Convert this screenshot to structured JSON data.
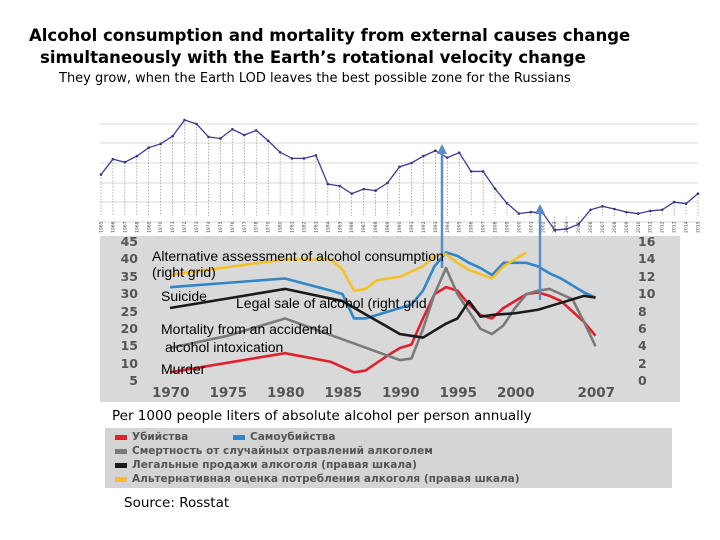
{
  "header": {
    "title_line1": "Alcohol consumption and mortality from external causes change",
    "title_line2": "simultaneously with the Earth’s rotational velocity change",
    "subtitle": "They grow, when the Earth LOD leaves the best possible zone for the Russians"
  },
  "lod_chart": {
    "type": "line",
    "years": [
      "1965",
      "1966",
      "1967",
      "1968",
      "1969",
      "1970",
      "1971",
      "1972",
      "1973",
      "1974",
      "1975",
      "1976",
      "1977",
      "1978",
      "1979",
      "1980",
      "1981",
      "1982",
      "1983",
      "1984",
      "1985",
      "1986",
      "1987",
      "1988",
      "1989",
      "1990",
      "1991",
      "1992",
      "1993",
      "1994",
      "1995",
      "1996",
      "1997",
      "1998",
      "1999",
      "2000",
      "2001",
      "2002",
      "2003",
      "2004",
      "2005",
      "2006",
      "2007",
      "2008",
      "2009",
      "2010",
      "2011",
      "2012",
      "2013",
      "2014",
      "2015"
    ],
    "values": [
      15,
      19,
      18.2,
      19.8,
      22,
      23,
      25,
      29.2,
      28.2,
      24.8,
      24.4,
      26.8,
      25.3,
      26.5,
      23.8,
      20.8,
      19.2,
      19.2,
      20,
      12.5,
      12,
      10,
      11.2,
      10.8,
      12.8,
      17,
      18,
      19.8,
      21.2,
      19.4,
      20.7,
      15.8,
      15.8,
      11.3,
      7.5,
      4.8,
      5.2,
      5,
      0.5,
      0.8,
      2,
      5.8,
      6.7,
      6,
      5.2,
      4.8,
      5.5,
      5.8,
      7.8,
      7.4,
      10
    ],
    "line_color": "#3b3b9a"
  },
  "chart_data": {
    "type": "line",
    "x_ticks": [
      "1970",
      "1975",
      "1980",
      "1985",
      "1990",
      "1995",
      "2000",
      "2007"
    ],
    "y_left_ticks": [
      "45",
      "40",
      "35",
      "30",
      "25",
      "20",
      "15",
      "10",
      "5"
    ],
    "y_right_ticks": [
      "16",
      "14",
      "12",
      "10",
      "8",
      "6",
      "4",
      "2",
      "0"
    ],
    "ylim_left": [
      5,
      45
    ],
    "ylim_right": [
      0,
      16
    ],
    "xlim": [
      1970,
      2007
    ],
    "grid": false,
    "xlabel": "Per 1000 people liters of absolute alcohol per person annually",
    "series": [
      {
        "name": "Убийства",
        "axis": "left",
        "color": "#e0202e",
        "points": [
          [
            1970,
            7.5
          ],
          [
            1980,
            13
          ],
          [
            1984,
            10.5
          ],
          [
            1986,
            7.5
          ],
          [
            1987,
            8
          ],
          [
            1989,
            12.5
          ],
          [
            1990,
            14.5
          ],
          [
            1991,
            15.5
          ],
          [
            1992,
            23
          ],
          [
            1993,
            30
          ],
          [
            1994,
            32
          ],
          [
            1995,
            31
          ],
          [
            1996,
            27
          ],
          [
            1997,
            24
          ],
          [
            1998,
            23
          ],
          [
            1999,
            26
          ],
          [
            2000,
            28
          ],
          [
            2001,
            30
          ],
          [
            2002,
            30.5
          ],
          [
            2003,
            29.5
          ],
          [
            2004,
            28
          ],
          [
            2005,
            25
          ],
          [
            2006,
            22
          ],
          [
            2007,
            18
          ]
        ]
      },
      {
        "name": "Самоубийства",
        "axis": "left",
        "color": "#2f86c8",
        "points": [
          [
            1970,
            32
          ],
          [
            1980,
            34.5
          ],
          [
            1984,
            31
          ],
          [
            1985,
            30
          ],
          [
            1986,
            23
          ],
          [
            1987,
            23
          ],
          [
            1988,
            24
          ],
          [
            1990,
            26
          ],
          [
            1991,
            27
          ],
          [
            1992,
            31
          ],
          [
            1993,
            38
          ],
          [
            1994,
            42
          ],
          [
            1995,
            41
          ],
          [
            1996,
            39
          ],
          [
            1997,
            37.5
          ],
          [
            1998,
            35.5
          ],
          [
            1999,
            39
          ],
          [
            2001,
            39
          ],
          [
            2002,
            38
          ],
          [
            2003,
            36
          ],
          [
            2004,
            34.5
          ],
          [
            2005,
            32.5
          ],
          [
            2006,
            30.5
          ],
          [
            2007,
            29
          ]
        ]
      },
      {
        "name": "Смертность от случайных отравлений алкоголем",
        "axis": "left",
        "color": "#7a7a7a",
        "points": [
          [
            1970,
            14.5
          ],
          [
            1975,
            18
          ],
          [
            1980,
            23
          ],
          [
            1985,
            17
          ],
          [
            1990,
            11
          ],
          [
            1991,
            11.5
          ],
          [
            1992,
            20
          ],
          [
            1993,
            30
          ],
          [
            1994,
            37.5
          ],
          [
            1995,
            30
          ],
          [
            1996,
            25
          ],
          [
            1997,
            20
          ],
          [
            1998,
            18.5
          ],
          [
            1999,
            21
          ],
          [
            2000,
            26
          ],
          [
            2001,
            30
          ],
          [
            2002,
            31
          ],
          [
            2003,
            31.5
          ],
          [
            2004,
            30
          ],
          [
            2005,
            28.5
          ],
          [
            2006,
            22
          ],
          [
            2007,
            15
          ]
        ]
      },
      {
        "name": "Легальные продажи алкоголя (правая шкала)",
        "axis": "right",
        "color": "#1a1a1a",
        "points": [
          [
            1970,
            8.4
          ],
          [
            1980,
            10.6
          ],
          [
            1985,
            9.2
          ],
          [
            1990,
            5.4
          ],
          [
            1992,
            5.0
          ],
          [
            1994,
            6.6
          ],
          [
            1995,
            7.2
          ],
          [
            1996,
            9.2
          ],
          [
            1997,
            7.4
          ],
          [
            1998,
            7.6
          ],
          [
            2000,
            7.8
          ],
          [
            2002,
            8.2
          ],
          [
            2004,
            9.0
          ],
          [
            2006,
            9.8
          ],
          [
            2007,
            9.6
          ]
        ]
      },
      {
        "name": "Альтернативная оценка потребления алкоголя (правая шкала)",
        "axis": "right",
        "color": "#f5c024",
        "points": [
          [
            1970,
            12.2
          ],
          [
            1980,
            14
          ],
          [
            1984,
            14
          ],
          [
            1985,
            12.8
          ],
          [
            1986,
            10.4
          ],
          [
            1987,
            10.6
          ],
          [
            1988,
            11.6
          ],
          [
            1990,
            12
          ],
          [
            1992,
            13.2
          ],
          [
            1993,
            14.4
          ],
          [
            1994,
            14.6
          ],
          [
            1995,
            13.6
          ],
          [
            1996,
            12.8
          ],
          [
            1998,
            11.8
          ],
          [
            1999,
            13.2
          ],
          [
            2001,
            14.8
          ]
        ]
      }
    ],
    "annotations": {
      "alternative_1": "Alternative assessment of alcohol consumption",
      "alternative_2": "(right grid)",
      "suicide": "Suicide",
      "legal_sale": "Legal sale of alcohol (right grid",
      "mortality_1": "Mortality from an accidental",
      "mortality_2": "alcohol intoxication",
      "murder": "Murder"
    },
    "legend": [
      "Убийства",
      "Самоубийства",
      "Смертность от случайных отравлений алкоголем",
      "Легальные продажи алкоголя (правая шкала)",
      "Альтернативная оценка потребления алкоголя (правая шкала)"
    ],
    "legend_placement": "bottom",
    "arrow_color": "#5b8bc9"
  },
  "source": "Source: Rosstat"
}
